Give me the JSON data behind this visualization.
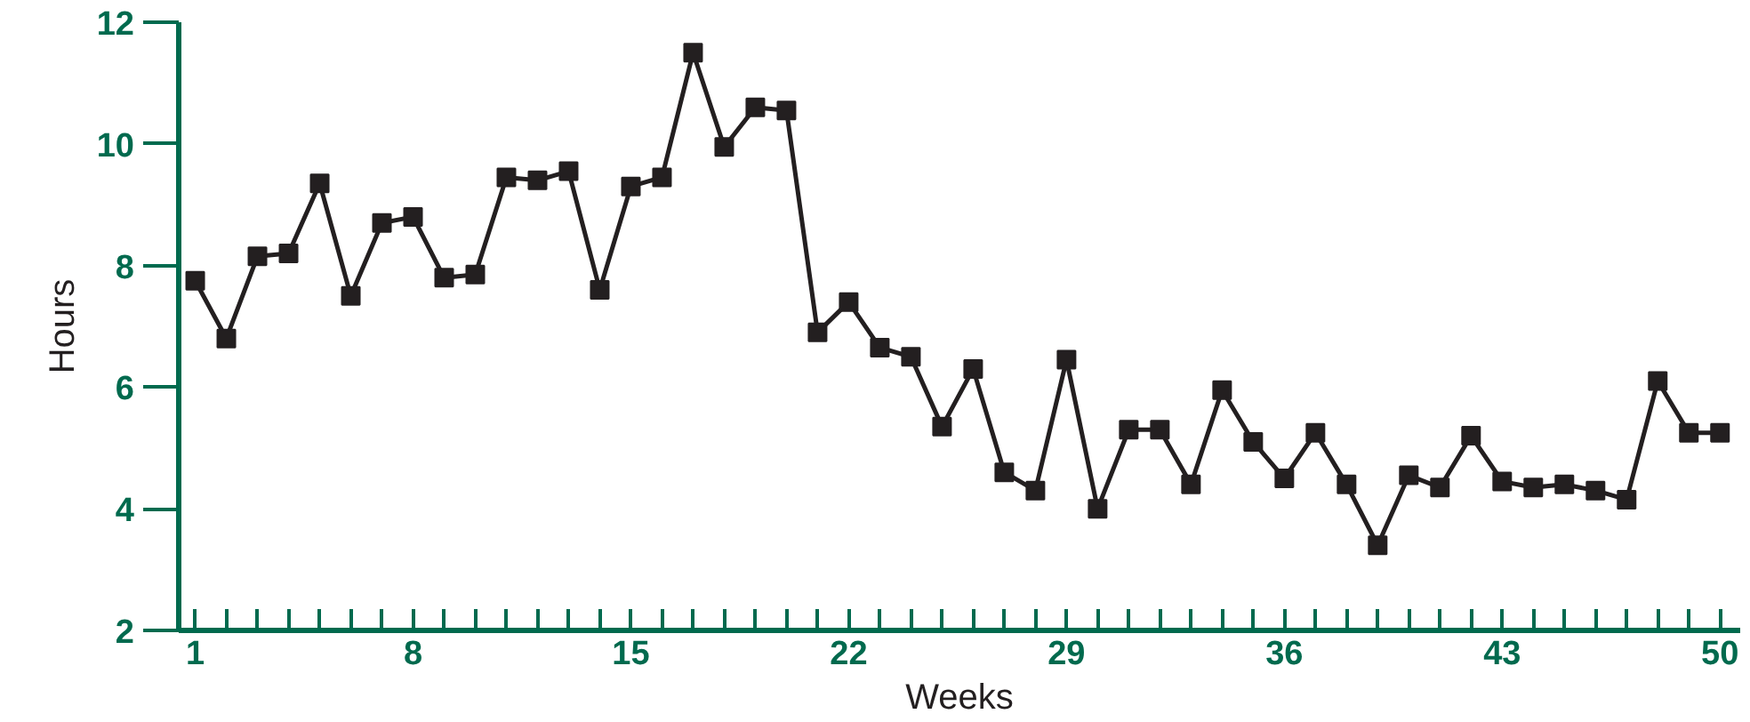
{
  "chart_data": {
    "type": "line",
    "xlabel": "Weeks",
    "ylabel": "Hours",
    "x": [
      1,
      2,
      3,
      4,
      5,
      6,
      7,
      8,
      9,
      10,
      11,
      12,
      13,
      14,
      15,
      16,
      17,
      18,
      19,
      20,
      21,
      22,
      23,
      24,
      25,
      26,
      27,
      28,
      29,
      30,
      31,
      32,
      33,
      34,
      35,
      36,
      37,
      38,
      39,
      40,
      41,
      42,
      43,
      44,
      45,
      46,
      47,
      48,
      49,
      50
    ],
    "series": [
      {
        "color": "#231f20",
        "values": [
          7.75,
          6.8,
          8.15,
          8.2,
          9.35,
          7.5,
          8.7,
          8.8,
          7.8,
          7.85,
          9.45,
          9.4,
          9.55,
          7.6,
          9.3,
          9.45,
          11.5,
          9.95,
          10.6,
          10.55,
          6.9,
          7.4,
          6.65,
          6.5,
          5.35,
          6.3,
          4.6,
          4.3,
          6.45,
          4.0,
          5.3,
          5.3,
          4.4,
          5.95,
          5.1,
          4.5,
          5.25,
          4.4,
          3.4,
          4.55,
          4.35,
          5.2,
          4.45,
          4.35,
          4.4,
          4.3,
          4.15,
          6.1,
          5.25,
          5.25
        ]
      }
    ],
    "xlim": [
      0.47,
      50.65
    ],
    "ylim": [
      2,
      12
    ],
    "xticks": [
      1,
      {
        "value": 2,
        "label": null
      },
      {
        "value": 3,
        "label": null
      },
      {
        "value": 4,
        "label": null
      },
      {
        "value": 5,
        "label": null
      },
      {
        "value": 6,
        "label": null
      },
      {
        "value": 7,
        "label": null
      },
      8,
      {
        "value": 9,
        "label": null
      },
      {
        "value": 10,
        "label": null
      },
      {
        "value": 11,
        "label": null
      },
      {
        "value": 12,
        "label": null
      },
      {
        "value": 13,
        "label": null
      },
      {
        "value": 14,
        "label": null
      },
      15,
      {
        "value": 16,
        "label": null
      },
      {
        "value": 17,
        "label": null
      },
      {
        "value": 18,
        "label": null
      },
      {
        "value": 19,
        "label": null
      },
      {
        "value": 20,
        "label": null
      },
      {
        "value": 21,
        "label": null
      },
      22,
      {
        "value": 23,
        "label": null
      },
      {
        "value": 24,
        "label": null
      },
      {
        "value": 25,
        "label": null
      },
      {
        "value": 26,
        "label": null
      },
      {
        "value": 27,
        "label": null
      },
      {
        "value": 28,
        "label": null
      },
      29,
      {
        "value": 30,
        "label": null
      },
      {
        "value": 31,
        "label": null
      },
      {
        "value": 32,
        "label": null
      },
      {
        "value": 33,
        "label": null
      },
      {
        "value": 34,
        "label": null
      },
      {
        "value": 35,
        "label": null
      },
      36,
      {
        "value": 37,
        "label": null
      },
      {
        "value": 38,
        "label": null
      },
      {
        "value": 39,
        "label": null
      },
      {
        "value": 40,
        "label": null
      },
      {
        "value": 41,
        "label": null
      },
      {
        "value": 42,
        "label": null
      },
      43,
      {
        "value": 44,
        "label": null
      },
      {
        "value": 45,
        "label": null
      },
      {
        "value": 46,
        "label": null
      },
      {
        "value": 47,
        "label": null
      },
      {
        "value": 48,
        "label": null
      },
      {
        "value": 49,
        "label": null
      },
      50
    ],
    "yticks": [
      2,
      4,
      6,
      8,
      10,
      12
    ],
    "grid": false,
    "marker": "square",
    "line_style": "solid"
  }
}
